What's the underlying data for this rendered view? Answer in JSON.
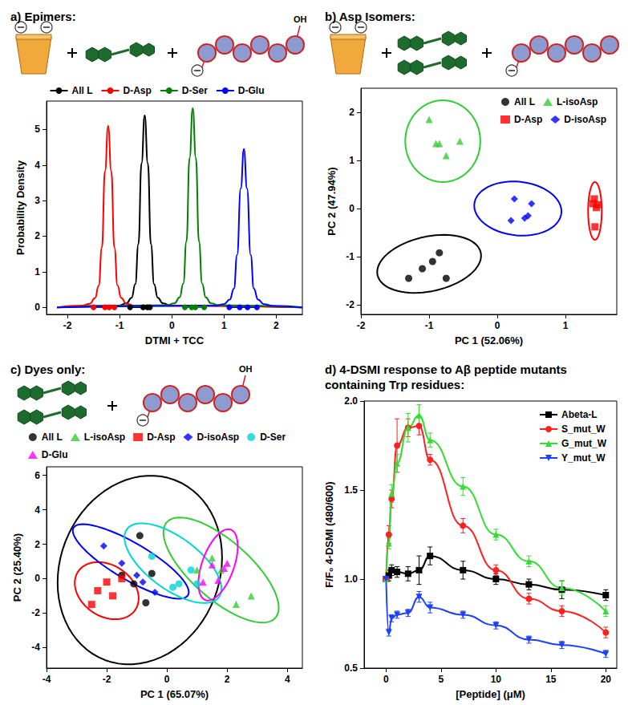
{
  "chart_data": [
    {
      "type": "line",
      "title": "a) Epimers:",
      "annotations": [
        "OH"
      ],
      "x_label": "DTMI + TCC",
      "y_label": "Probability Density",
      "xlim": [
        -2.4,
        2.5
      ],
      "xticks": [
        -2,
        -1,
        0,
        1,
        2
      ],
      "ylim": [
        -0.2,
        5.8
      ],
      "yticks": [
        0,
        1,
        2,
        3,
        4,
        5
      ],
      "grid": false,
      "legend": "top",
      "series": [
        {
          "name": "All L",
          "color": "#000000",
          "marker": "circle",
          "x": [
            -2.2,
            -1.02,
            -0.87,
            -0.77,
            -0.7,
            -0.64,
            -0.58,
            -0.52,
            -0.46,
            -0.4,
            -0.34,
            -0.27,
            -0.17,
            -0.02,
            2.5
          ],
          "values": [
            0,
            0.05,
            0.11,
            0.27,
            0.65,
            1.78,
            4.05,
            5.4,
            4.05,
            1.78,
            0.65,
            0.27,
            0.11,
            0.05,
            0
          ],
          "points": [
            -0.8,
            -0.55,
            -0.47,
            -0.42
          ]
        },
        {
          "name": "D-Asp",
          "color": "#ff0000",
          "marker": "circle",
          "x": [
            -2.2,
            -1.72,
            -1.57,
            -1.47,
            -1.4,
            -1.34,
            -1.28,
            -1.22,
            -1.16,
            -1.1,
            -1.04,
            -0.97,
            -0.87,
            -0.72,
            2.5
          ],
          "values": [
            0,
            0.05,
            0.1,
            0.26,
            0.61,
            1.68,
            3.83,
            5.1,
            3.83,
            1.68,
            0.61,
            0.26,
            0.1,
            0.05,
            0
          ],
          "points": [
            -1.5,
            -1.28,
            -1.2,
            -1.1
          ]
        },
        {
          "name": "D-Ser",
          "color": "#008000",
          "marker": "circle",
          "x": [
            -2.2,
            -0.1,
            0.05,
            0.15,
            0.22,
            0.28,
            0.34,
            0.4,
            0.46,
            0.52,
            0.58,
            0.65,
            0.75,
            0.9,
            2.5
          ],
          "values": [
            0,
            0.06,
            0.11,
            0.28,
            0.67,
            1.85,
            4.2,
            5.6,
            4.2,
            1.85,
            0.67,
            0.28,
            0.11,
            0.06,
            0
          ],
          "points": [
            0.25,
            0.38,
            0.45,
            0.62
          ]
        },
        {
          "name": "D-Glu",
          "color": "#0000ff",
          "marker": "circle",
          "x": [
            -2.2,
            0.83,
            1.0,
            1.11,
            1.19,
            1.25,
            1.32,
            1.38,
            1.44,
            1.51,
            1.57,
            1.65,
            1.76,
            1.93,
            2.5
          ],
          "values": [
            0,
            0.04,
            0.09,
            0.22,
            0.53,
            1.47,
            3.34,
            4.45,
            3.34,
            1.47,
            0.53,
            0.22,
            0.09,
            0.04,
            0
          ],
          "points": [
            1.1,
            1.3,
            1.45,
            1.63
          ]
        }
      ]
    },
    {
      "type": "scatter",
      "title": "b) Asp Isomers:",
      "x_label": "PC 1 (52.06%)",
      "y_label": "PC 2 (47.94%)",
      "xlim": [
        -2,
        1.75
      ],
      "xticks": [
        -2,
        -1,
        0,
        1
      ],
      "ylim": [
        -2.2,
        2.5
      ],
      "yticks": [
        -2,
        -1,
        0,
        1,
        2
      ],
      "grid": false,
      "legend": "upper right",
      "series": [
        {
          "name": "All L",
          "color": "#000000",
          "marker": "circle",
          "x": [
            -1.3,
            -1.1,
            -0.95,
            -0.85,
            -0.75
          ],
          "values": [
            -1.45,
            -1.25,
            -1.1,
            -0.92,
            -1.45
          ],
          "ellipse": {
            "center": [
              -1.0,
              -1.15
            ],
            "semi_axes": [
              0.8,
              0.55
            ],
            "angle": 25
          }
        },
        {
          "name": "L-isoAsp",
          "color": "#33cc33",
          "marker": "triangle",
          "x": [
            -1.0,
            -0.9,
            -0.85,
            -0.75,
            -0.55
          ],
          "values": [
            1.85,
            1.35,
            1.35,
            1.1,
            1.4
          ],
          "ellipse": {
            "center": [
              -0.8,
              1.4
            ],
            "semi_axes": [
              0.55,
              0.85
            ],
            "angle": 0
          }
        },
        {
          "name": "D-Asp",
          "color": "#ff0000",
          "marker": "square",
          "x": [
            1.42,
            1.45,
            1.43,
            1.4,
            1.47
          ],
          "values": [
            0.2,
            0.02,
            -0.38,
            0.1,
            0.08
          ],
          "ellipse": {
            "center": [
              1.43,
              -0.05
            ],
            "semi_axes": [
              0.1,
              0.6
            ],
            "angle": 0
          }
        },
        {
          "name": "D-isoAsp",
          "color": "#0000ff",
          "marker": "diamond",
          "x": [
            0.2,
            0.25,
            0.4,
            0.45,
            0.5
          ],
          "values": [
            -0.25,
            0.2,
            -0.2,
            -0.15,
            0.1
          ],
          "ellipse": {
            "center": [
              0.3,
              0.0
            ],
            "semi_axes": [
              0.65,
              0.55
            ],
            "angle": -20
          }
        }
      ]
    },
    {
      "type": "scatter",
      "title": "c) Dyes only:",
      "annotations": [
        "OH"
      ],
      "x_label": "PC 1 (65.07%)",
      "y_label": "PC 2 (25.40%)",
      "xlim": [
        -4,
        4.5
      ],
      "xticks": [
        -4,
        -2,
        0,
        2,
        4
      ],
      "ylim": [
        -5.2,
        6.5
      ],
      "yticks": [
        -4,
        -2,
        0,
        2,
        4,
        6
      ],
      "grid": false,
      "legend": "top",
      "series": [
        {
          "name": "All L",
          "color": "#000000",
          "marker": "circle",
          "x": [
            -1.5,
            -1.1,
            -0.9,
            -0.7,
            -0.5
          ],
          "values": [
            0.2,
            -0.3,
            2.5,
            -1.4,
            0.3
          ],
          "ellipse": {
            "center": [
              -0.9,
              0.5
            ],
            "semi_axes": [
              2.7,
              5.5
            ],
            "angle": -5
          }
        },
        {
          "name": "L-isoAsp",
          "color": "#33cc33",
          "marker": "triangle",
          "x": [
            1.0,
            1.8,
            2.3,
            2.8,
            1.5
          ],
          "values": [
            0.5,
            0.5,
            -1.5,
            -1.0,
            1.2
          ],
          "ellipse": {
            "center": [
              1.8,
              0.5
            ],
            "semi_axes": [
              3.4,
              1.2
            ],
            "angle": -62
          }
        },
        {
          "name": "D-Asp",
          "color": "#ff0000",
          "marker": "square",
          "x": [
            -2.5,
            -2.3,
            -2.0,
            -1.8,
            -1.5
          ],
          "values": [
            -1.5,
            -0.7,
            -0.2,
            -1.0,
            0.0
          ],
          "ellipse": {
            "center": [
              -2.0,
              -0.7
            ],
            "semi_axes": [
              1.0,
              1.7
            ],
            "angle": 15
          }
        },
        {
          "name": "D-isoAsp",
          "color": "#0000ff",
          "marker": "diamond",
          "x": [
            -2.1,
            -1.5,
            -1.0,
            -0.8,
            -0.4
          ],
          "values": [
            1.9,
            0.9,
            0.2,
            -0.2,
            -0.8
          ],
          "ellipse": {
            "center": [
              -1.2,
              1.0
            ],
            "semi_axes": [
              2.77,
              0.85
            ],
            "angle": -49
          }
        },
        {
          "name": "D-Ser",
          "color": "#00d5d5",
          "marker": "circle",
          "x": [
            -0.5,
            0.2,
            0.4,
            0.8,
            1.0
          ],
          "values": [
            1.3,
            -0.5,
            -0.3,
            0.5,
            -0.3
          ],
          "ellipse": {
            "center": [
              0.2,
              0.9
            ],
            "semi_axes": [
              2.6,
              1.1
            ],
            "angle": -60
          }
        },
        {
          "name": "D-Glu",
          "color": "#ff00ff",
          "marker": "triangle",
          "x": [
            1.2,
            1.5,
            1.7,
            1.9,
            2.0
          ],
          "values": [
            -0.2,
            0.8,
            -0.1,
            0.6,
            0.9
          ],
          "ellipse": {
            "center": [
              1.7,
              0.8
            ],
            "semi_axes": [
              0.55,
              2.1
            ],
            "angle": -10
          }
        }
      ]
    },
    {
      "type": "line",
      "title": "d) 4-DSMI response to Aβ peptide mutants containing Trp residues:",
      "x_label": "[Peptide] (μM)",
      "y_label": "F/F₀ 4-DSMI (480/600)",
      "xlim": [
        -2,
        21
      ],
      "xticks": [
        0,
        5,
        10,
        15,
        20
      ],
      "ylim": [
        0.5,
        2.0
      ],
      "yticks": [
        0.5,
        {
          "value": 1,
          "label": "1.0"
        },
        1.5,
        {
          "value": 2,
          "label": "2.0"
        }
      ],
      "grid": false,
      "legend": "upper right",
      "x": [
        0,
        0.25,
        0.5,
        1,
        2,
        3,
        4,
        7,
        10,
        13,
        16,
        20
      ],
      "series": [
        {
          "name": "Abeta-L",
          "color": "#000000",
          "marker": "square",
          "values": [
            1.0,
            1.02,
            1.05,
            1.04,
            1.03,
            1.05,
            1.13,
            1.05,
            1.0,
            0.97,
            0.94,
            0.91
          ],
          "errors": [
            0,
            0.03,
            0.03,
            0.03,
            0.04,
            0.08,
            0.05,
            0.05,
            0.03,
            0.03,
            0.05,
            0.03
          ]
        },
        {
          "name": "S_mut_W",
          "color": "#ff2020",
          "marker": "circle",
          "values": [
            1.0,
            1.25,
            1.45,
            1.75,
            1.85,
            1.86,
            1.67,
            1.3,
            1.05,
            0.89,
            0.82,
            0.7
          ],
          "errors": [
            0,
            0.05,
            0.05,
            0.15,
            0.05,
            0.05,
            0.03,
            0.04,
            0.03,
            0.03,
            0.03,
            0.03
          ]
        },
        {
          "name": "G_mut_W",
          "color": "#33dd33",
          "marker": "triangle",
          "values": [
            1.0,
            1.2,
            1.48,
            1.65,
            1.85,
            1.92,
            1.78,
            1.52,
            1.25,
            1.1,
            0.95,
            0.82
          ],
          "errors": [
            0,
            0.03,
            0.05,
            0.05,
            0.08,
            0.06,
            0.04,
            0.05,
            0.03,
            0.03,
            0.04,
            0.03
          ]
        },
        {
          "name": "Y_mut_W",
          "color": "#2040ff",
          "marker": "triangle-down",
          "values": [
            1.0,
            0.7,
            0.78,
            0.8,
            0.81,
            0.9,
            0.84,
            0.8,
            0.74,
            0.66,
            0.63,
            0.58
          ],
          "errors": [
            0,
            0.02,
            0.02,
            0.02,
            0.02,
            0.03,
            0.03,
            0.02,
            0.02,
            0.02,
            0.02,
            0.02
          ]
        }
      ]
    }
  ]
}
